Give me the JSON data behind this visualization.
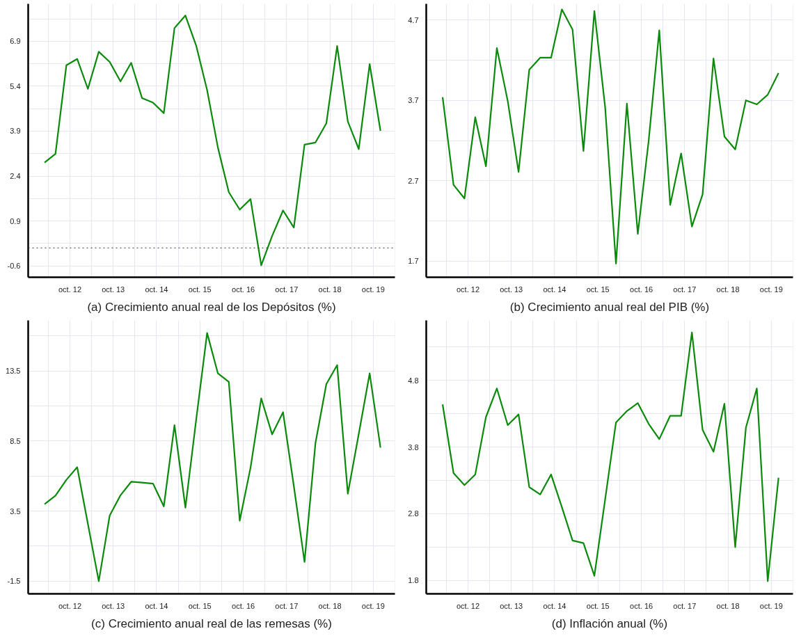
{
  "chart_data": [
    {
      "type": "line",
      "title": "(a) Crecimiento anual real de los Depósitos (%)",
      "x": [
        "2012-03",
        "2012-06",
        "2012-09",
        "2012-12",
        "2013-03",
        "2013-06",
        "2013-09",
        "2013-12",
        "2014-03",
        "2014-06",
        "2014-09",
        "2014-12",
        "2015-03",
        "2015-06",
        "2015-09",
        "2015-12",
        "2016-03",
        "2016-06",
        "2016-09",
        "2016-12",
        "2017-03",
        "2017-06",
        "2017-09",
        "2017-12",
        "2018-03",
        "2018-06",
        "2018-09",
        "2018-12",
        "2019-03",
        "2019-06",
        "2019-09",
        "2019-12"
      ],
      "series": [
        {
          "color": "#0a8a0a",
          "values": [
            2.85,
            3.14,
            6.1,
            6.31,
            5.31,
            6.55,
            6.21,
            5.56,
            6.18,
            5.0,
            4.85,
            4.5,
            7.34,
            7.76,
            6.74,
            5.27,
            3.35,
            1.86,
            1.28,
            1.63,
            -0.58,
            0.4,
            1.25,
            0.68,
            3.45,
            3.52,
            4.16,
            6.74,
            4.22,
            3.3,
            6.14,
            3.91
          ]
        }
      ],
      "xlim": [
        "2011-10-15",
        "2020-04-01"
      ],
      "xticks": [
        {
          "value": "2012-10",
          "label": "oct. 12"
        },
        {
          "value": "2013-10",
          "label": "oct. 13"
        },
        {
          "value": "2014-10",
          "label": "oct. 14"
        },
        {
          "value": "2015-10",
          "label": "oct. 15"
        },
        {
          "value": "2016-10",
          "label": "oct. 16"
        },
        {
          "value": "2017-10",
          "label": "oct. 17"
        },
        {
          "value": "2018-10",
          "label": "oct. 18"
        },
        {
          "value": "2019-10",
          "label": "oct. 19"
        }
      ],
      "ylim": [
        -0.98,
        8.15
      ],
      "yticks": [
        -0.6,
        0.9,
        2.4,
        3.9,
        5.4,
        6.9
      ],
      "ref_lines": [
        {
          "axis": "y",
          "value": 0,
          "line_style": "dotted",
          "color": "#333333"
        }
      ],
      "grid": true,
      "line_style": "solid",
      "marker": "none"
    },
    {
      "type": "line",
      "title": "(b) Crecimiento anual real del PIB (%)",
      "x": [
        "2012-03",
        "2012-06",
        "2012-09",
        "2012-12",
        "2013-03",
        "2013-06",
        "2013-09",
        "2013-12",
        "2014-03",
        "2014-06",
        "2014-09",
        "2014-12",
        "2015-03",
        "2015-06",
        "2015-09",
        "2015-12",
        "2016-03",
        "2016-06",
        "2016-09",
        "2016-12",
        "2017-03",
        "2017-06",
        "2017-09",
        "2017-12",
        "2018-03",
        "2018-06",
        "2018-09",
        "2018-12",
        "2019-03",
        "2019-06",
        "2019-09",
        "2019-12"
      ],
      "series": [
        {
          "color": "#0a8a0a",
          "values": [
            3.74,
            2.65,
            2.48,
            3.49,
            2.88,
            4.35,
            3.69,
            2.81,
            4.08,
            4.23,
            4.23,
            4.83,
            4.58,
            3.07,
            4.81,
            3.61,
            1.67,
            3.66,
            2.04,
            3.19,
            4.57,
            2.4,
            3.04,
            2.13,
            2.53,
            4.22,
            3.25,
            3.09,
            3.7,
            3.65,
            3.77,
            4.04
          ]
        }
      ],
      "xlim": [
        "2011-10-15",
        "2020-04-01"
      ],
      "xticks": [
        {
          "value": "2012-10",
          "label": "oct. 12"
        },
        {
          "value": "2013-10",
          "label": "oct. 13"
        },
        {
          "value": "2014-10",
          "label": "oct. 14"
        },
        {
          "value": "2015-10",
          "label": "oct. 15"
        },
        {
          "value": "2016-10",
          "label": "oct. 16"
        },
        {
          "value": "2017-10",
          "label": "oct. 17"
        },
        {
          "value": "2018-10",
          "label": "oct. 18"
        },
        {
          "value": "2019-10",
          "label": "oct. 19"
        }
      ],
      "ylim": [
        1.5,
        4.9
      ],
      "yticks": [
        1.7,
        2.7,
        3.7,
        4.7
      ],
      "grid": true,
      "line_style": "solid",
      "marker": "none"
    },
    {
      "type": "line",
      "title": "(c) Crecimiento anual real de las remesas (%)",
      "x": [
        "2012-03",
        "2012-06",
        "2012-09",
        "2012-12",
        "2013-03",
        "2013-06",
        "2013-09",
        "2013-12",
        "2014-03",
        "2014-06",
        "2014-09",
        "2014-12",
        "2015-03",
        "2015-06",
        "2015-09",
        "2015-12",
        "2016-03",
        "2016-06",
        "2016-09",
        "2016-12",
        "2017-03",
        "2017-06",
        "2017-09",
        "2017-12",
        "2018-03",
        "2018-06",
        "2018-09",
        "2018-12",
        "2019-03",
        "2019-06",
        "2019-09",
        "2019-12"
      ],
      "series": [
        {
          "color": "#0a8a0a",
          "values": [
            4.0,
            4.6,
            5.73,
            6.63,
            2.6,
            -1.5,
            3.18,
            4.63,
            5.59,
            5.53,
            5.46,
            3.84,
            9.63,
            3.75,
            10.1,
            16.2,
            13.32,
            12.71,
            2.82,
            6.6,
            11.54,
            8.97,
            10.55,
            5.28,
            -0.12,
            8.34,
            12.56,
            13.91,
            4.74,
            9.0,
            13.32,
            8.03
          ]
        }
      ],
      "xlim": [
        "2011-10-15",
        "2020-04-01"
      ],
      "xticks": [
        {
          "value": "2012-10",
          "label": "oct. 12"
        },
        {
          "value": "2013-10",
          "label": "oct. 13"
        },
        {
          "value": "2014-10",
          "label": "oct. 14"
        },
        {
          "value": "2015-10",
          "label": "oct. 15"
        },
        {
          "value": "2016-10",
          "label": "oct. 16"
        },
        {
          "value": "2017-10",
          "label": "oct. 17"
        },
        {
          "value": "2018-10",
          "label": "oct. 18"
        },
        {
          "value": "2019-10",
          "label": "oct. 19"
        }
      ],
      "ylim": [
        -2.4,
        17.1
      ],
      "yticks": [
        -1.5,
        3.5,
        8.5,
        13.5
      ],
      "grid": true,
      "line_style": "solid",
      "marker": "none"
    },
    {
      "type": "line",
      "title": "(d) Inflación anual (%)",
      "x": [
        "2012-03",
        "2012-06",
        "2012-09",
        "2012-12",
        "2013-03",
        "2013-06",
        "2013-09",
        "2013-12",
        "2014-03",
        "2014-06",
        "2014-09",
        "2014-12",
        "2015-03",
        "2015-06",
        "2015-09",
        "2015-12",
        "2016-03",
        "2016-06",
        "2016-09",
        "2016-12",
        "2017-03",
        "2017-06",
        "2017-09",
        "2017-12",
        "2018-03",
        "2018-06",
        "2018-09",
        "2018-12",
        "2019-03",
        "2019-06",
        "2019-09",
        "2019-12"
      ],
      "series": [
        {
          "color": "#0a8a0a",
          "values": [
            4.44,
            3.41,
            3.23,
            3.39,
            4.25,
            4.68,
            4.13,
            4.29,
            3.2,
            3.09,
            3.39,
            2.9,
            2.4,
            2.36,
            1.87,
            3.02,
            4.17,
            4.34,
            4.46,
            4.15,
            3.92,
            4.27,
            4.27,
            5.52,
            4.06,
            3.73,
            4.45,
            2.3,
            4.09,
            4.68,
            1.79,
            3.34
          ]
        }
      ],
      "xlim": [
        "2011-10-15",
        "2020-04-01"
      ],
      "xticks": [
        {
          "value": "2012-10",
          "label": "oct. 12"
        },
        {
          "value": "2013-10",
          "label": "oct. 13"
        },
        {
          "value": "2014-10",
          "label": "oct. 14"
        },
        {
          "value": "2015-10",
          "label": "oct. 15"
        },
        {
          "value": "2016-10",
          "label": "oct. 16"
        },
        {
          "value": "2017-10",
          "label": "oct. 17"
        },
        {
          "value": "2018-10",
          "label": "oct. 18"
        },
        {
          "value": "2019-10",
          "label": "oct. 19"
        }
      ],
      "ylim": [
        1.6,
        5.7
      ],
      "yticks": [
        1.8,
        2.8,
        3.8,
        4.8
      ],
      "grid": true,
      "line_style": "solid",
      "marker": "none"
    }
  ]
}
